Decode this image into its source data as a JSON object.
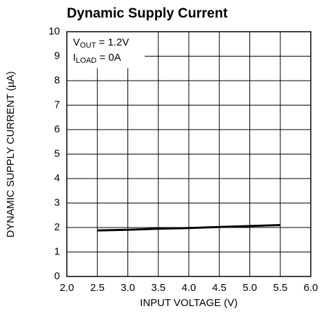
{
  "chart_data": {
    "type": "line",
    "title": "Dynamic Supply Current",
    "x_label": "INPUT VOLTAGE (V)",
    "y_label": "DYNAMIC SUPPLY CURRENT (µA)",
    "annotations": [
      [
        "V",
        "OUT",
        " = 1.2V"
      ],
      [
        "I",
        "LOAD",
        " = 0A"
      ]
    ],
    "x": [
      2.5,
      3.0,
      3.5,
      4.0,
      4.5,
      5.0,
      5.5
    ],
    "series": [
      {
        "color": "#000000",
        "values": [
          1.88,
          1.91,
          1.95,
          1.98,
          2.02,
          2.06,
          2.1
        ]
      }
    ],
    "xlim": [
      2,
      6
    ],
    "xticks": [
      {
        "value": 2,
        "label": "2.0"
      },
      {
        "value": 2.5,
        "label": "2.5"
      },
      {
        "value": 3,
        "label": "3.0"
      },
      {
        "value": 3.5,
        "label": "3.5"
      },
      {
        "value": 4,
        "label": "4.0"
      },
      {
        "value": 4.5,
        "label": "4.5"
      },
      {
        "value": 5,
        "label": "5.0"
      },
      {
        "value": 5.5,
        "label": "5.5"
      },
      {
        "value": 6,
        "label": "6.0"
      }
    ],
    "ylim": [
      0,
      10
    ],
    "yticks": [
      0,
      1,
      2,
      3,
      4,
      5,
      6,
      7,
      8,
      9,
      10
    ],
    "grid": true
  }
}
